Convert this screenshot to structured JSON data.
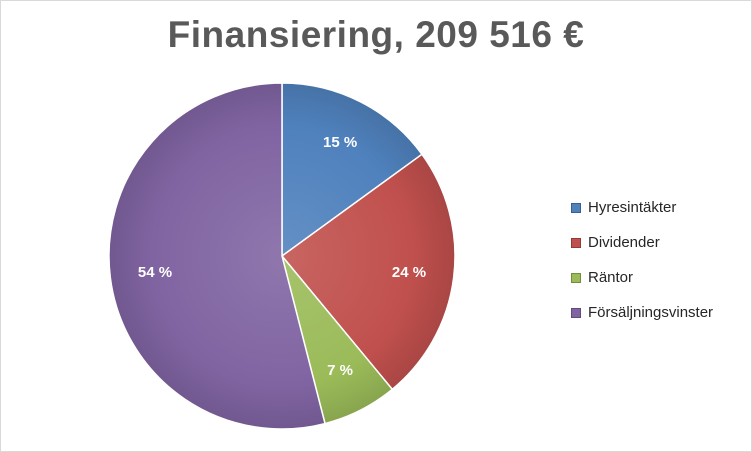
{
  "title": "Finansiering, 209 516 €",
  "chart_data": {
    "type": "pie",
    "title": "Finansiering, 209 516 €",
    "legend_position": "right",
    "start_angle_deg": 0,
    "direction": "clockwise",
    "slices": [
      {
        "label": "Hyresintäkter",
        "value": 15,
        "display": "15 %",
        "color": "#4f81bd"
      },
      {
        "label": "Dividender",
        "value": 24,
        "display": "24 %",
        "color": "#c0504d"
      },
      {
        "label": "Räntor",
        "value": 7,
        "display": "7 %",
        "color": "#9bbb59"
      },
      {
        "label": "Försäljningsvinster",
        "value": 54,
        "display": "54 %",
        "color": "#8064a2"
      }
    ]
  }
}
